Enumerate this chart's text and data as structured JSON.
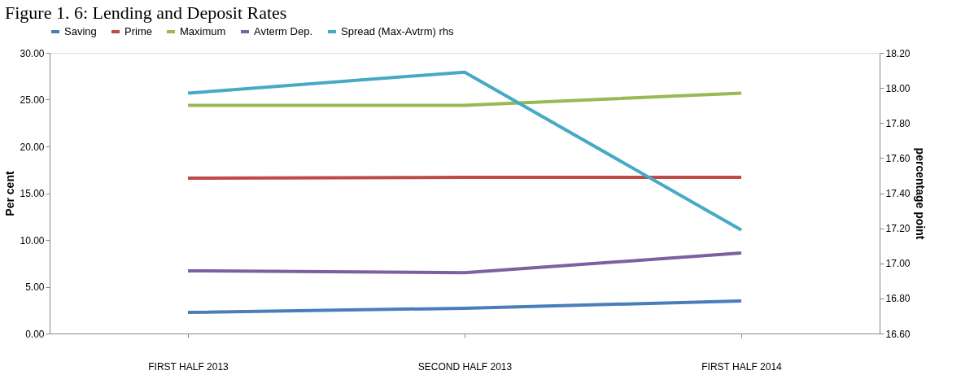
{
  "chart_data": {
    "type": "line",
    "title": "Figure 1. 6: Lending and Deposit Rates",
    "categories": [
      "FIRST HALF 2013",
      "SECOND HALF 2013",
      "FIRST HALF 2014"
    ],
    "series": [
      {
        "name": "Saving",
        "color": "#4a7ebb",
        "values": [
          2.26,
          2.7,
          3.48
        ]
      },
      {
        "name": "Prime",
        "color": "#be4b48",
        "values": [
          16.6,
          16.7,
          16.7
        ]
      },
      {
        "name": "Maximum",
        "color": "#98b954",
        "values": [
          24.4,
          24.4,
          25.7
        ]
      },
      {
        "name": "Avterm Dep.",
        "color": "#7d60a0",
        "values": [
          6.7,
          6.5,
          8.6
        ]
      },
      {
        "name": "Spread (Max-Avtrm) rhs",
        "color": "#46aac5",
        "axis": "y2",
        "values": [
          17.97,
          18.09,
          17.19
        ]
      }
    ],
    "ylabel": "Per cent",
    "y2label": "percentage point",
    "ylim": [
      0,
      30
    ],
    "yticks": [
      {
        "value": 0,
        "label": "0.00"
      },
      {
        "value": 5,
        "label": "5.00"
      },
      {
        "value": 10,
        "label": "10.00"
      },
      {
        "value": 15,
        "label": "15.00"
      },
      {
        "value": 20,
        "label": "20.00"
      },
      {
        "value": 25,
        "label": "25.00"
      },
      {
        "value": 30,
        "label": "30.00"
      }
    ],
    "y2lim": [
      16.6,
      18.2
    ],
    "y2ticks": [
      {
        "value": 16.6,
        "label": "16.60"
      },
      {
        "value": 16.8,
        "label": "16.80"
      },
      {
        "value": 17.0,
        "label": "17.00"
      },
      {
        "value": 17.2,
        "label": "17.20"
      },
      {
        "value": 17.4,
        "label": "17.40"
      },
      {
        "value": 17.6,
        "label": "17.60"
      },
      {
        "value": 17.8,
        "label": "17.80"
      },
      {
        "value": 18.0,
        "label": "18.00"
      },
      {
        "value": 18.2,
        "label": "18.20"
      }
    ],
    "legend": "top",
    "grid": false,
    "marker": "none",
    "line_style": "solid"
  }
}
